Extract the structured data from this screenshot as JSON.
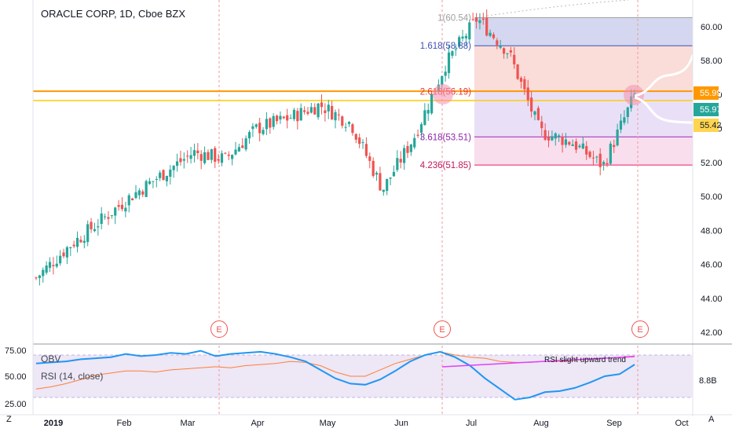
{
  "header": {
    "title": "ORACLE CORP, 1D, Cboe BZX"
  },
  "indicators": {
    "obv_label": "OBV",
    "rsi_label": "RSI (14, close)",
    "annotation": "RSI slight upward trend",
    "obv_value_label": "8.8B",
    "rsi_ticks": [
      "75.00",
      "50.00",
      "25.00"
    ]
  },
  "price_badges": {
    "upper": "55.99",
    "last": "55.97",
    "lower": "55.42"
  },
  "earnings_markers": [
    "E",
    "E",
    "E"
  ],
  "bottom_bar": {
    "left_btn": "Z",
    "right_btn": "A"
  },
  "colors": {
    "up": "#26a69a",
    "down": "#ef5350",
    "rsi": "#2196f3",
    "obv": "#ff7f36",
    "resistance1": "#ff9800",
    "resistance2": "#ffcc02",
    "fib_band": "#ede7f6",
    "annotation_line": "#e040fb",
    "badge_upper": "#ff9800",
    "badge_last": "#26a69a",
    "badge_lower": "#ffd54f"
  },
  "chart_data": {
    "type": "candlestick",
    "title": "ORACLE CORP, 1D, Cboe BZX",
    "x_tick_labels": [
      "2019",
      "Feb",
      "Mar",
      "Apr",
      "May",
      "Jun",
      "Jul",
      "Aug",
      "Sep",
      "Oct"
    ],
    "y_ticks": [
      "60.00",
      "58.00",
      "56.00",
      "54.00",
      "52.00",
      "50.00",
      "48.00",
      "46.00",
      "44.00",
      "42.00"
    ],
    "ylim": [
      41.2,
      61.7
    ],
    "price_path": [
      {
        "month": "Jan 2",
        "close": 45.2
      },
      {
        "month": "Jan 10",
        "close": 47.0
      },
      {
        "month": "Jan 22",
        "close": 48.5
      },
      {
        "month": "Feb 1",
        "close": 50.0
      },
      {
        "month": "Feb 15",
        "close": 51.3
      },
      {
        "month": "Mar 1",
        "close": 52.6
      },
      {
        "month": "Mar 15",
        "close": 52.2
      },
      {
        "month": "Apr 1",
        "close": 54.0
      },
      {
        "month": "Apr 15",
        "close": 54.6
      },
      {
        "month": "May 1",
        "close": 55.4
      },
      {
        "month": "May 15",
        "close": 54.3
      },
      {
        "month": "Jun 3",
        "close": 50.4
      },
      {
        "month": "Jun 15",
        "close": 53.5
      },
      {
        "month": "Jul 1",
        "close": 57.8
      },
      {
        "month": "Jul 8",
        "close": 60.5
      },
      {
        "month": "Jul 20",
        "close": 58.5
      },
      {
        "month": "Aug 5",
        "close": 53.8
      },
      {
        "month": "Aug 15",
        "close": 53.2
      },
      {
        "month": "Aug 26",
        "close": 51.8
      },
      {
        "month": "Sep 10",
        "close": 55.97
      }
    ],
    "fibonacci": [
      {
        "label": "1(60.54)",
        "level": 1,
        "value": 60.54
      },
      {
        "label": "1.618(58.88)",
        "level": 1.618,
        "value": 58.88
      },
      {
        "label": "2.618(56.19)",
        "level": 2.618,
        "value": 56.19
      },
      {
        "label": "3.618(53.51)",
        "level": 3.618,
        "value": 53.51
      },
      {
        "label": "4.236(51.85)",
        "level": 4.236,
        "value": 51.85
      }
    ],
    "horizontal_lines": [
      56.2,
      55.65
    ],
    "current_price": 55.97,
    "rsi_panel": {
      "ylim": [
        22,
        78
      ],
      "band": [
        30,
        70
      ],
      "rsi_series": [
        62,
        63,
        64,
        66,
        67,
        68,
        71,
        69,
        70,
        72,
        71,
        74,
        69,
        71,
        72,
        73,
        71,
        68,
        64,
        56,
        48,
        43,
        42,
        47,
        55,
        64,
        70,
        73,
        68,
        60,
        48,
        38,
        28,
        30,
        35,
        36,
        39,
        44,
        50,
        52,
        61
      ],
      "obv_series": [
        38,
        40,
        43,
        47,
        51,
        53,
        55,
        55,
        54,
        56,
        57,
        58,
        59,
        58,
        60,
        61,
        62,
        64,
        63,
        60,
        54,
        50,
        50,
        56,
        62,
        66,
        70,
        73,
        70,
        68,
        67,
        64,
        63,
        63,
        64,
        64,
        65,
        66,
        67,
        68,
        69
      ],
      "trendline": [
        58,
        65
      ]
    }
  }
}
